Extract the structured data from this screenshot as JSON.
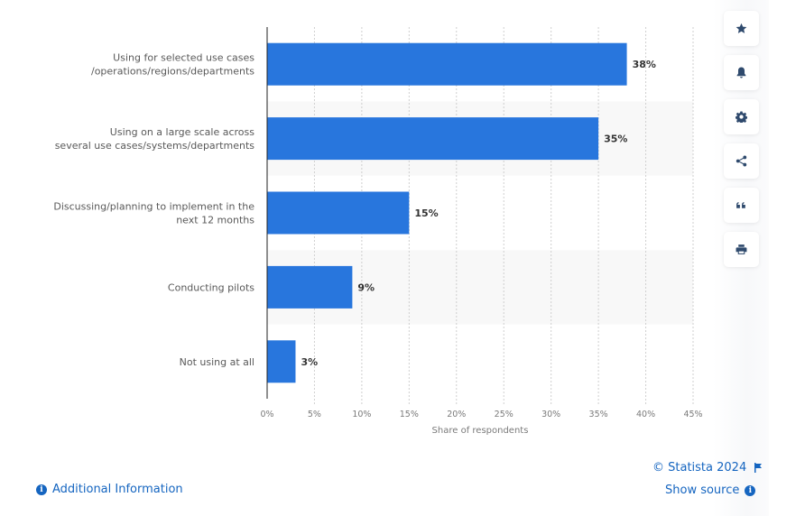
{
  "chart_data": {
    "type": "bar",
    "orientation": "horizontal",
    "categories": [
      [
        "Using for selected use cases",
        "/operations/regions/departments"
      ],
      [
        "Using on a large scale across",
        "several use cases/systems/departments"
      ],
      [
        "Discussing/planning to implement in the",
        "next 12 months"
      ],
      [
        "Conducting pilots"
      ],
      [
        "Not using at all"
      ]
    ],
    "values": [
      38,
      35,
      15,
      9,
      3
    ],
    "data_labels": [
      "38%",
      "35%",
      "15%",
      "9%",
      "3%"
    ],
    "xlabel": "Share of respondents",
    "ylabel": "",
    "xlim": [
      0,
      45
    ],
    "x_ticks": [
      0,
      5,
      10,
      15,
      20,
      25,
      30,
      35,
      40,
      45
    ],
    "x_tick_labels": [
      "0%",
      "5%",
      "10%",
      "15%",
      "20%",
      "25%",
      "30%",
      "35%",
      "40%",
      "45%"
    ],
    "grid": "vertical-dotted",
    "alternating_bands": true,
    "bar_color": "#2876dd",
    "title": ""
  },
  "toolbar": {
    "buttons": [
      {
        "name": "favorite-button",
        "icon": "star-icon"
      },
      {
        "name": "notification-button",
        "icon": "bell-icon"
      },
      {
        "name": "settings-button",
        "icon": "gear-icon"
      },
      {
        "name": "share-button",
        "icon": "share-icon"
      },
      {
        "name": "cite-button",
        "icon": "quote-icon"
      },
      {
        "name": "print-button",
        "icon": "print-icon"
      }
    ]
  },
  "footer": {
    "copyright": "© Statista 2024",
    "show_source": "Show source",
    "additional_info": "Additional Information",
    "link_color": "#1565c0"
  }
}
